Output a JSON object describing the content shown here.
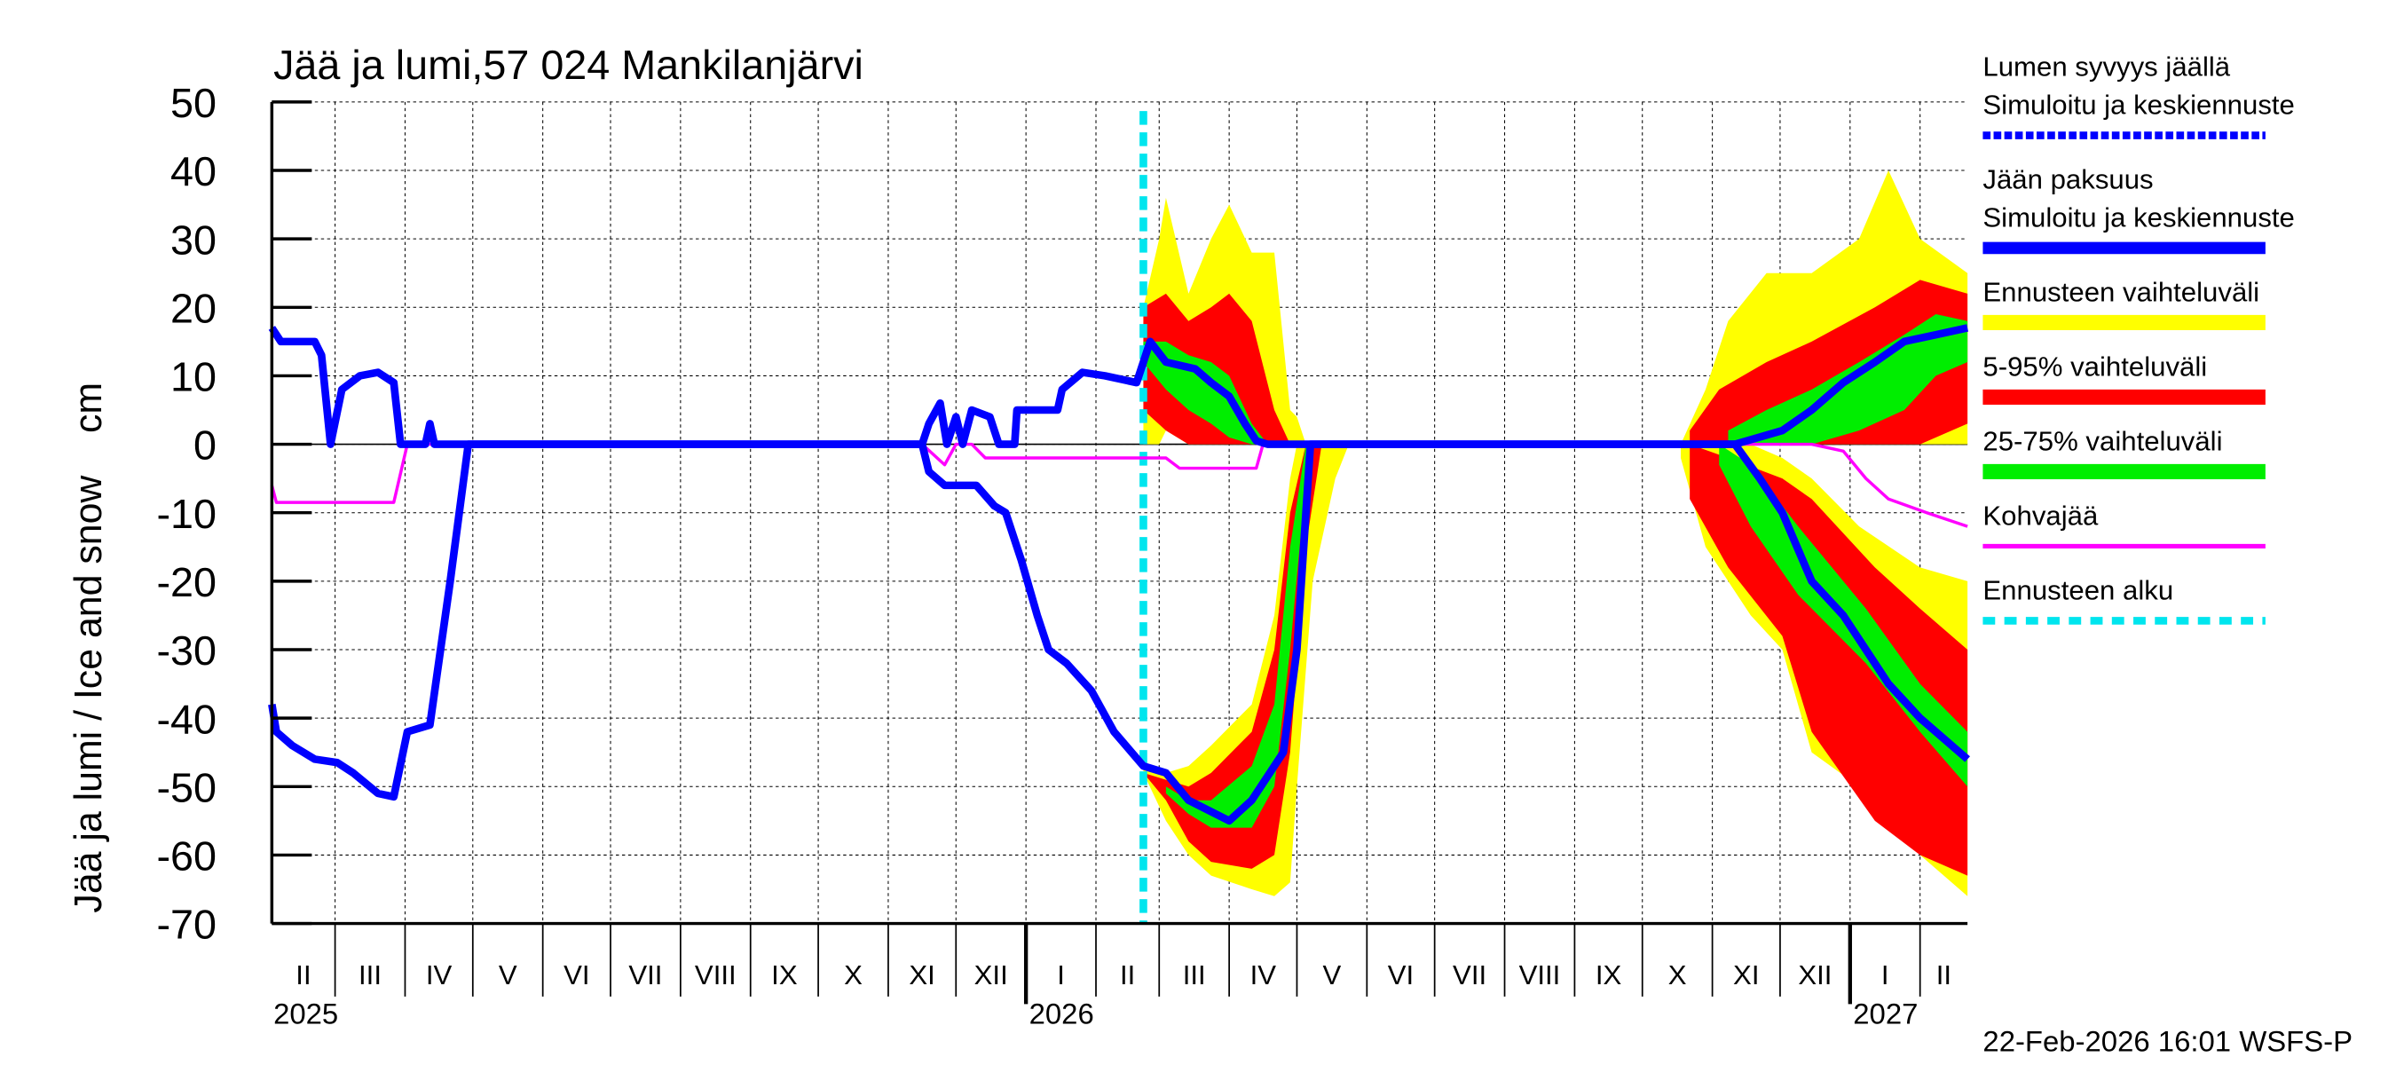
{
  "chart_data": {
    "type": "area",
    "title": "Jää ja lumi,57 024 Mankilanjärvi",
    "ylabel": "Jää ja lumi / Ice and snow    cm",
    "ylim": [
      -70,
      50
    ],
    "yticks": [
      50,
      40,
      30,
      20,
      10,
      0,
      -10,
      -20,
      -30,
      -40,
      -50,
      -60,
      -70
    ],
    "xlim": [
      "2025-02-01",
      "2027-02-22"
    ],
    "month_labels": [
      "I",
      "II",
      "III",
      "IV",
      "V",
      "VI",
      "VII",
      "VIII",
      "IX",
      "X",
      "XI",
      "XII"
    ],
    "year_labels": [
      "2025",
      "2026",
      "2027"
    ],
    "grid": true,
    "legend_placement": "right",
    "forecast_start": "2026-02-22",
    "footer": "22-Feb-2026 16:01 WSFS-P",
    "colors": {
      "snow": "#0000ff",
      "ice": "#0000ff",
      "range": "#ffff00",
      "p5_95": "#ff0000",
      "p25_75": "#00ee00",
      "slush": "#ff00ff",
      "forecast_start": "#00e5ee"
    },
    "legend": [
      {
        "label": "Lumen syvyys jäällä",
        "label2": "Simuloitu ja keskiennuste",
        "key": "snow",
        "style": "dashed"
      },
      {
        "label": "Jään paksuus",
        "label2": "Simuloitu ja keskiennuste",
        "key": "ice",
        "style": "solid"
      },
      {
        "label": "Ennusteen vaihteluväli",
        "key": "range",
        "style": "band"
      },
      {
        "label": "5-95% vaihteluväli",
        "key": "p5_95",
        "style": "band"
      },
      {
        "label": "25-75% vaihteluväli",
        "key": "p25_75",
        "style": "band"
      },
      {
        "label": "Kohvajää",
        "key": "slush",
        "style": "thin"
      },
      {
        "label": "Ennusteen alku",
        "key": "forecast_start",
        "style": "dotted"
      }
    ],
    "bands": [
      {
        "key": "range",
        "points": [
          [
            "2026-02-22",
            0,
            20
          ],
          [
            "2026-03-01",
            0,
            30
          ],
          [
            "2026-03-04",
            2,
            36
          ],
          [
            "2026-03-14",
            0,
            22
          ],
          [
            "2026-03-24",
            0,
            30
          ],
          [
            "2026-04-01",
            0,
            35
          ],
          [
            "2026-04-11",
            0,
            28
          ],
          [
            "2026-04-21",
            0,
            28
          ],
          [
            "2026-04-28",
            0,
            5
          ],
          [
            "2026-05-01",
            0,
            4
          ],
          [
            "2026-05-05",
            0,
            0
          ]
        ]
      },
      {
        "key": "p5_95",
        "points": [
          [
            "2026-02-22",
            5,
            20
          ],
          [
            "2026-03-04",
            2,
            22
          ],
          [
            "2026-03-14",
            0,
            18
          ],
          [
            "2026-03-24",
            0,
            20
          ],
          [
            "2026-04-01",
            0,
            22
          ],
          [
            "2026-04-11",
            0,
            18
          ],
          [
            "2026-04-21",
            0,
            5
          ],
          [
            "2026-04-28",
            0,
            0
          ]
        ]
      },
      {
        "key": "p25_75",
        "points": [
          [
            "2026-02-22",
            12,
            15
          ],
          [
            "2026-03-04",
            8,
            15
          ],
          [
            "2026-03-14",
            5,
            13
          ],
          [
            "2026-03-24",
            3,
            12
          ],
          [
            "2026-04-01",
            1,
            10
          ],
          [
            "2026-04-11",
            0,
            3
          ],
          [
            "2026-04-18",
            0,
            0
          ]
        ]
      },
      {
        "key": "range",
        "points": [
          [
            "2026-02-22",
            -48,
            -47
          ],
          [
            "2026-03-04",
            -55,
            -48
          ],
          [
            "2026-03-14",
            -60,
            -47
          ],
          [
            "2026-03-24",
            -63,
            -44
          ],
          [
            "2026-04-11",
            -65,
            -38
          ],
          [
            "2026-04-21",
            -66,
            -25
          ],
          [
            "2026-04-28",
            -64,
            -5
          ],
          [
            "2026-05-01",
            -50,
            0
          ],
          [
            "2026-05-08",
            -20,
            0
          ],
          [
            "2026-05-18",
            -5,
            0
          ],
          [
            "2026-05-24",
            0,
            0
          ]
        ]
      },
      {
        "key": "p5_95",
        "points": [
          [
            "2026-02-22",
            -48,
            -48
          ],
          [
            "2026-03-04",
            -52,
            -49
          ],
          [
            "2026-03-14",
            -58,
            -50
          ],
          [
            "2026-03-24",
            -61,
            -48
          ],
          [
            "2026-04-11",
            -62,
            -42
          ],
          [
            "2026-04-21",
            -60,
            -30
          ],
          [
            "2026-04-28",
            -45,
            -10
          ],
          [
            "2026-05-05",
            -15,
            0
          ],
          [
            "2026-05-12",
            0,
            0
          ]
        ]
      },
      {
        "key": "p25_75",
        "points": [
          [
            "2026-03-04",
            -51,
            -50
          ],
          [
            "2026-03-14",
            -54,
            -52
          ],
          [
            "2026-03-24",
            -56,
            -52
          ],
          [
            "2026-04-11",
            -56,
            -47
          ],
          [
            "2026-04-21",
            -50,
            -38
          ],
          [
            "2026-04-28",
            -30,
            -15
          ],
          [
            "2026-05-05",
            -5,
            0
          ],
          [
            "2026-05-08",
            0,
            0
          ]
        ]
      },
      {
        "key": "range",
        "points": [
          [
            "2026-10-18",
            0,
            0
          ],
          [
            "2026-10-29",
            0,
            8
          ],
          [
            "2026-11-08",
            0,
            18
          ],
          [
            "2026-11-25",
            0,
            25
          ],
          [
            "2026-12-15",
            0,
            25
          ],
          [
            "2027-01-05",
            0,
            30
          ],
          [
            "2027-01-18",
            0,
            40
          ],
          [
            "2027-02-01",
            0,
            30
          ],
          [
            "2027-02-22",
            0,
            25
          ]
        ]
      },
      {
        "key": "p5_95",
        "points": [
          [
            "2026-10-22",
            0,
            2
          ],
          [
            "2026-11-04",
            0,
            8
          ],
          [
            "2026-11-25",
            0,
            12
          ],
          [
            "2026-12-15",
            0,
            15
          ],
          [
            "2027-01-12",
            0,
            20
          ],
          [
            "2027-02-01",
            0,
            24
          ],
          [
            "2027-02-22",
            3,
            22
          ]
        ]
      },
      {
        "key": "p25_75",
        "points": [
          [
            "2026-11-08",
            0,
            2
          ],
          [
            "2026-11-25",
            0,
            5
          ],
          [
            "2026-12-15",
            0,
            8
          ],
          [
            "2027-01-05",
            2,
            12
          ],
          [
            "2027-01-25",
            5,
            16
          ],
          [
            "2027-02-08",
            10,
            19
          ],
          [
            "2027-02-22",
            12,
            18
          ]
        ]
      },
      {
        "key": "range",
        "points": [
          [
            "2026-10-18",
            -2,
            0
          ],
          [
            "2026-10-29",
            -15,
            0
          ],
          [
            "2026-11-18",
            -25,
            0
          ],
          [
            "2026-12-02",
            -30,
            -2
          ],
          [
            "2026-12-15",
            -45,
            -5
          ],
          [
            "2027-01-05",
            -50,
            -12
          ],
          [
            "2027-02-01",
            -60,
            -18
          ],
          [
            "2027-02-22",
            -66,
            -20
          ]
        ]
      },
      {
        "key": "p5_95",
        "points": [
          [
            "2026-10-22",
            -8,
            0
          ],
          [
            "2026-11-08",
            -18,
            -2
          ],
          [
            "2026-12-02",
            -28,
            -5
          ],
          [
            "2026-12-15",
            -42,
            -8
          ],
          [
            "2027-01-12",
            -55,
            -18
          ],
          [
            "2027-02-01",
            -60,
            -24
          ],
          [
            "2027-02-22",
            -63,
            -30
          ]
        ]
      },
      {
        "key": "p25_75",
        "points": [
          [
            "2026-11-04",
            -3,
            0
          ],
          [
            "2026-11-18",
            -12,
            -3
          ],
          [
            "2026-12-09",
            -22,
            -12
          ],
          [
            "2027-01-08",
            -32,
            -24
          ],
          [
            "2027-02-01",
            -42,
            -35
          ],
          [
            "2027-02-22",
            -50,
            -42
          ]
        ]
      }
    ],
    "series": [
      {
        "key": "slush",
        "name": "Kohvajää",
        "points": [
          [
            "2025-02-01",
            -6
          ],
          [
            "2025-02-03",
            -8.5
          ],
          [
            "2025-03-27",
            -8.5
          ],
          [
            "2025-04-02",
            0
          ],
          [
            "2025-11-16",
            0
          ],
          [
            "2025-11-26",
            -3
          ],
          [
            "2025-12-01",
            0
          ],
          [
            "2025-12-08",
            0
          ],
          [
            "2025-12-14",
            -2
          ],
          [
            "2026-03-04",
            -2
          ],
          [
            "2026-03-10",
            -3.5
          ],
          [
            "2026-04-13",
            -3.5
          ],
          [
            "2026-04-16",
            0
          ],
          [
            "2026-12-15",
            0
          ],
          [
            "2026-12-29",
            -1
          ],
          [
            "2027-01-08",
            -5
          ],
          [
            "2027-01-18",
            -8
          ],
          [
            "2027-02-04",
            -10
          ],
          [
            "2027-02-22",
            -12
          ]
        ]
      },
      {
        "key": "ice",
        "name": "Jään paksuus",
        "points": [
          [
            "2025-02-01",
            -38
          ],
          [
            "2025-02-03",
            -42
          ],
          [
            "2025-02-10",
            -44
          ],
          [
            "2025-02-20",
            -46
          ],
          [
            "2025-03-02",
            -46.5
          ],
          [
            "2025-03-09",
            -48
          ],
          [
            "2025-03-20",
            -51
          ],
          [
            "2025-03-27",
            -51.5
          ],
          [
            "2025-04-02",
            -42
          ],
          [
            "2025-04-12",
            -41
          ],
          [
            "2025-04-21",
            -20
          ],
          [
            "2025-04-29",
            0
          ],
          [
            "2025-11-16",
            0
          ],
          [
            "2025-11-19",
            -4
          ],
          [
            "2025-11-26",
            -6
          ],
          [
            "2025-12-10",
            -6
          ],
          [
            "2025-12-18",
            -9
          ],
          [
            "2025-12-23",
            -10
          ],
          [
            "2025-12-30",
            -17
          ],
          [
            "2026-01-06",
            -25
          ],
          [
            "2026-01-11",
            -30
          ],
          [
            "2026-01-19",
            -32
          ],
          [
            "2026-01-30",
            -36
          ],
          [
            "2026-02-09",
            -42
          ],
          [
            "2026-02-22",
            -47
          ],
          [
            "2026-03-04",
            -48
          ],
          [
            "2026-03-14",
            -52
          ],
          [
            "2026-04-01",
            -55
          ],
          [
            "2026-04-11",
            -52
          ],
          [
            "2026-04-25",
            -45
          ],
          [
            "2026-05-01",
            -30
          ],
          [
            "2026-05-05",
            -10
          ],
          [
            "2026-05-07",
            0
          ],
          [
            "2026-11-11",
            0
          ],
          [
            "2026-11-22",
            -5
          ],
          [
            "2026-12-02",
            -10
          ],
          [
            "2026-12-15",
            -20
          ],
          [
            "2026-12-29",
            -25
          ],
          [
            "2027-01-08",
            -30
          ],
          [
            "2027-01-18",
            -35
          ],
          [
            "2027-02-01",
            -40
          ],
          [
            "2027-02-22",
            -46
          ]
        ]
      },
      {
        "key": "snow",
        "name": "Lumen syvyys jäällä",
        "points": [
          [
            "2025-02-01",
            17
          ],
          [
            "2025-02-05",
            15
          ],
          [
            "2025-02-20",
            15
          ],
          [
            "2025-02-23",
            13
          ],
          [
            "2025-02-27",
            0
          ],
          [
            "2025-03-04",
            8
          ],
          [
            "2025-03-12",
            10
          ],
          [
            "2025-03-20",
            10.5
          ],
          [
            "2025-03-27",
            9
          ],
          [
            "2025-03-30",
            0
          ],
          [
            "2025-04-10",
            0
          ],
          [
            "2025-04-12",
            3
          ],
          [
            "2025-04-14",
            0
          ],
          [
            "2025-11-16",
            0
          ],
          [
            "2025-11-19",
            3
          ],
          [
            "2025-11-24",
            6
          ],
          [
            "2025-11-27",
            0
          ],
          [
            "2025-12-01",
            4
          ],
          [
            "2025-12-04",
            0
          ],
          [
            "2025-12-08",
            5
          ],
          [
            "2025-12-16",
            4
          ],
          [
            "2025-12-20",
            0
          ],
          [
            "2025-12-27",
            0
          ],
          [
            "2025-12-28",
            5
          ],
          [
            "2026-01-15",
            5
          ],
          [
            "2026-01-17",
            8
          ],
          [
            "2026-01-26",
            10.5
          ],
          [
            "2026-02-05",
            10
          ],
          [
            "2026-02-19",
            9
          ],
          [
            "2026-02-22",
            12
          ],
          [
            "2026-02-25",
            15
          ],
          [
            "2026-03-04",
            12
          ],
          [
            "2026-03-17",
            11
          ],
          [
            "2026-03-24",
            9
          ],
          [
            "2026-04-01",
            7
          ],
          [
            "2026-04-08",
            3
          ],
          [
            "2026-04-13",
            0.5
          ],
          [
            "2026-04-18",
            0
          ],
          [
            "2026-11-11",
            0
          ],
          [
            "2026-12-02",
            2
          ],
          [
            "2026-12-15",
            5
          ],
          [
            "2026-12-29",
            9
          ],
          [
            "2027-01-12",
            12
          ],
          [
            "2027-01-25",
            15
          ],
          [
            "2027-02-08",
            16
          ],
          [
            "2027-02-22",
            17
          ]
        ]
      }
    ]
  }
}
